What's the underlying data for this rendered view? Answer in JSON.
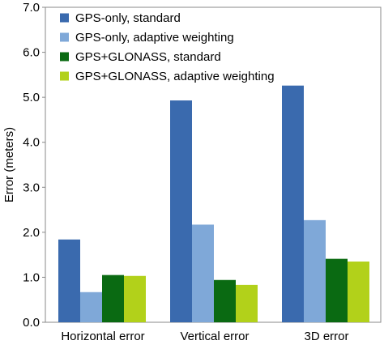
{
  "chart_data": {
    "type": "bar",
    "title": "",
    "xlabel": "",
    "ylabel": "Error (meters)",
    "ylim": [
      0,
      7
    ],
    "yticks": [
      "0.0",
      "1.0",
      "2.0",
      "3.0",
      "4.0",
      "5.0",
      "6.0",
      "7.0"
    ],
    "grid": false,
    "legend_position": "top-right",
    "categories": [
      "Horizontal error",
      "Vertical error",
      "3D error"
    ],
    "series": [
      {
        "name": "GPS-only, standard",
        "color": "#3a6aae",
        "values": [
          1.84,
          4.93,
          5.26
        ]
      },
      {
        "name": "GPS-only, adaptive weighting",
        "color": "#7fa8d8",
        "values": [
          0.67,
          2.17,
          2.27
        ]
      },
      {
        "name": "GPS+GLONASS, standard",
        "color": "#0a6a12",
        "values": [
          1.05,
          0.94,
          1.41
        ]
      },
      {
        "name": "GPS+GLONASS, adaptive weighting",
        "color": "#b2d11a",
        "values": [
          1.03,
          0.83,
          1.35
        ]
      }
    ]
  }
}
